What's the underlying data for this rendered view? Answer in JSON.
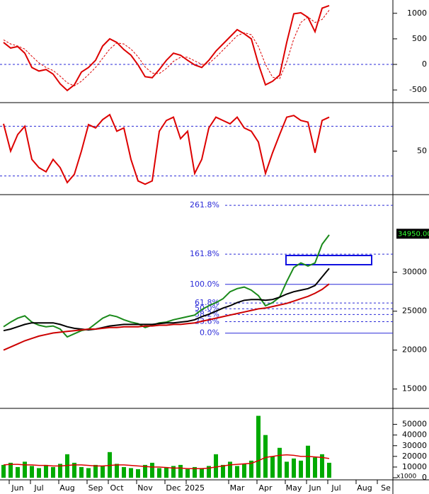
{
  "chart_data": [
    {
      "type": "line",
      "ylim": [
        -720,
        1260
      ],
      "yticks": [
        -500,
        0,
        500,
        1000
      ],
      "reference_lines": [
        0
      ],
      "series": [
        {
          "color": "#dd0000",
          "values": [
            430,
            320,
            350,
            220,
            -60,
            -130,
            -100,
            -190,
            -380,
            -510,
            -400,
            -150,
            -60,
            80,
            360,
            500,
            430,
            290,
            180,
            -10,
            -240,
            -260,
            -100,
            80,
            220,
            180,
            80,
            -10,
            -60,
            80,
            260,
            400,
            540,
            680,
            600,
            500,
            10,
            -400,
            -330,
            -210,
            430,
            990,
            1010,
            920,
            640,
            1100,
            1150,
            null,
            null,
            null,
            null,
            null,
            null,
            null,
            null,
            null
          ]
        },
        {
          "color": "#dd0000",
          "dashed": true,
          "values": [
            480,
            400,
            360,
            300,
            160,
            30,
            -60,
            -120,
            -230,
            -360,
            -420,
            -330,
            -200,
            -60,
            120,
            300,
            420,
            400,
            300,
            150,
            -50,
            -170,
            -180,
            -80,
            60,
            140,
            140,
            70,
            0,
            20,
            140,
            280,
            420,
            560,
            620,
            580,
            350,
            0,
            -250,
            -280,
            50,
            500,
            820,
            930,
            820,
            880,
            1060,
            null,
            null,
            null,
            null,
            null,
            null,
            null,
            null,
            null
          ]
        }
      ]
    },
    {
      "type": "line",
      "ylim": [
        0,
        106
      ],
      "yticks": [
        50
      ],
      "reference_lines": [
        20,
        80
      ],
      "series": [
        {
          "color": "#dd0000",
          "values": [
            83,
            50,
            70,
            80,
            40,
            30,
            25,
            40,
            30,
            12,
            22,
            50,
            82,
            78,
            88,
            94,
            74,
            78,
            40,
            14,
            10,
            14,
            74,
            87,
            91,
            65,
            74,
            23,
            40,
            78,
            91,
            87,
            83,
            91,
            78,
            74,
            61,
            23,
            48,
            70,
            91,
            93,
            87,
            85,
            48,
            87,
            91,
            null,
            null,
            null,
            null,
            null,
            null,
            null,
            null,
            null
          ]
        }
      ]
    },
    {
      "type": "line",
      "ylim": [
        12700,
        39700
      ],
      "yticks": [
        15000,
        20000,
        25000,
        30000
      ],
      "fib_low": 22180,
      "fib_high": 28450,
      "fib_ratios": [
        {
          "value": 0,
          "label": "0.0%"
        },
        {
          "value": 23.6,
          "label": "23.6%"
        },
        {
          "value": 38.2,
          "label": "38.2%"
        },
        {
          "value": 50,
          "label": "50.0%"
        },
        {
          "value": 61.8,
          "label": "61.8%"
        },
        {
          "value": 100,
          "label": "100.0%"
        },
        {
          "value": 161.8,
          "label": "161.8%"
        },
        {
          "value": 261.8,
          "label": "261.8%"
        }
      ],
      "last_price": {
        "value": 34950,
        "label": "34950.00"
      },
      "series": [
        {
          "color": "#1a8a1a",
          "values": [
            23000,
            23600,
            24100,
            24400,
            23600,
            23200,
            23000,
            23100,
            22700,
            21700,
            22100,
            22500,
            22700,
            23400,
            24100,
            24500,
            24300,
            23900,
            23600,
            23400,
            22900,
            23200,
            23500,
            23600,
            23900,
            24100,
            24300,
            24500,
            25200,
            25700,
            26100,
            26600,
            27500,
            27900,
            28100,
            27700,
            27000,
            25700,
            26100,
            26800,
            28800,
            30600,
            31200,
            30800,
            31200,
            33600,
            34800,
            null,
            null,
            null,
            null,
            null,
            null,
            null,
            null,
            null
          ]
        },
        {
          "color": "#000000",
          "values": [
            22500,
            22700,
            23000,
            23300,
            23500,
            23500,
            23500,
            23500,
            23300,
            23000,
            22800,
            22700,
            22600,
            22700,
            22900,
            23100,
            23200,
            23300,
            23300,
            23300,
            23300,
            23300,
            23400,
            23500,
            23500,
            23600,
            23700,
            23900,
            24300,
            24600,
            25000,
            25400,
            25700,
            26100,
            26400,
            26500,
            26500,
            26400,
            26500,
            26800,
            27200,
            27500,
            27700,
            27900,
            28300,
            29400,
            30500,
            null,
            null,
            null,
            null,
            null,
            null,
            null,
            null,
            null
          ]
        },
        {
          "color": "#cc0000",
          "values": [
            20000,
            20400,
            20800,
            21200,
            21500,
            21800,
            22000,
            22200,
            22300,
            22400,
            22500,
            22600,
            22700,
            22700,
            22800,
            22900,
            22900,
            23000,
            23000,
            23000,
            23100,
            23100,
            23200,
            23200,
            23300,
            23300,
            23400,
            23500,
            23700,
            23900,
            24100,
            24300,
            24500,
            24700,
            24900,
            25100,
            25300,
            25400,
            25600,
            25800,
            26000,
            26300,
            26600,
            26900,
            27300,
            27800,
            28500,
            null,
            null,
            null,
            null,
            null,
            null,
            null,
            null,
            null
          ]
        }
      ]
    },
    {
      "type": "bar",
      "ylim": [
        0,
        63000
      ],
      "yticks": [
        0,
        10000,
        20000,
        30000,
        40000,
        50000
      ],
      "unit_label": "x1000",
      "categories": [
        null,
        null,
        "Jun",
        null,
        null,
        "Jul",
        null,
        null,
        null,
        "Aug",
        null,
        null,
        null,
        "Sep",
        null,
        null,
        "Oct",
        null,
        null,
        null,
        "Nov",
        null,
        null,
        null,
        "Dec",
        null,
        null,
        "2025",
        null,
        null,
        null,
        null,
        null,
        "Mar",
        null,
        null,
        null,
        "Apr",
        null,
        null,
        null,
        "May",
        null,
        null,
        "Jun",
        null,
        null,
        "Jul",
        null,
        null,
        null,
        "Aug",
        null,
        null,
        "Se",
        null
      ],
      "series": [
        {
          "type": "bar",
          "color": "#00aa00",
          "values": [
            12000,
            14000,
            10000,
            15000,
            11000,
            9000,
            12000,
            10000,
            13000,
            22000,
            14000,
            10000,
            9000,
            12000,
            11000,
            24000,
            13000,
            10000,
            9000,
            8000,
            12000,
            14000,
            9000,
            10000,
            11000,
            12000,
            8000,
            10000,
            9000,
            11000,
            22000,
            12000,
            15000,
            11000,
            13000,
            16000,
            58000,
            40000,
            20000,
            28000,
            15000,
            18000,
            16000,
            30000,
            19000,
            22000,
            14000,
            null,
            null,
            null,
            null,
            null,
            null,
            null,
            null,
            null
          ]
        },
        {
          "type": "line",
          "color": "#dd0000",
          "values": [
            12000,
            12500,
            12500,
            12000,
            12000,
            11500,
            11500,
            11000,
            11000,
            11500,
            12000,
            12000,
            11500,
            11000,
            11000,
            11500,
            12000,
            12000,
            11500,
            11000,
            10500,
            10000,
            10000,
            9500,
            9000,
            9000,
            8500,
            8500,
            8500,
            9000,
            10000,
            11000,
            12000,
            12500,
            13000,
            13500,
            16000,
            19000,
            20000,
            21000,
            21500,
            21000,
            20000,
            20000,
            19500,
            19000,
            18000,
            null,
            null,
            null,
            null,
            null,
            null,
            null,
            null,
            null
          ]
        }
      ]
    }
  ]
}
